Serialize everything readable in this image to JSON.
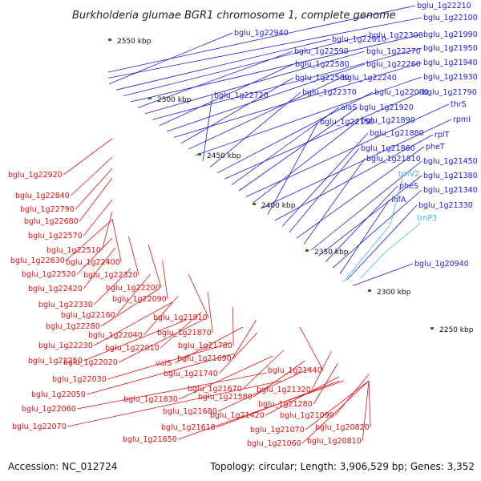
{
  "title": "Burkholderia glumae BGR1 chromosome 1, complete genome",
  "accession": "Accession: NC_012724",
  "summary": "Topology: circular; Length: 3,906,529 bp; Genes: 3,352",
  "colors": {
    "forward": "#1a1adc",
    "reverse": "#e01010",
    "rna": "#33bbdd",
    "backbone": "#808080",
    "tick": "#1e7f1e"
  },
  "ticks": [
    "2550 kbp",
    "2500 kbp",
    "2450 kbp",
    "2400 kbp",
    "2350 kbp",
    "2300 kbp",
    "2250 kbp"
  ],
  "forward_genes": [
    "bglu_1g22210",
    "bglu_1g22100",
    "bglu_1g22940",
    "bglu_1g22610",
    "bglu_1g22300",
    "bglu_1g21990",
    "bglu_1g22590",
    "bglu_1g22270",
    "bglu_1g21950",
    "bglu_1g22580",
    "bglu_1g22260",
    "bglu_1g21940",
    "bglu_1g22560",
    "bglu_1g22240",
    "bglu_1g21930",
    "bglu_1g22720",
    "bglu_1g22370",
    "bglu_1g22080",
    "bglu_1g21790",
    "alaS",
    "bglu_1g21920",
    "thrS",
    "bglu_1g21890",
    "rpmI",
    "bglu_1g22150",
    "rplT",
    "bglu_1g21880",
    "bglu_1g21860",
    "pheT",
    "bglu_1g21810",
    "bglu_1g21450",
    "bglu_1g21380",
    "pheS",
    "bglu_1g21340",
    "ihfA",
    "bglu_1g21330",
    "bglu_1g20940"
  ],
  "rna_genes": [
    "trnV2",
    "trnP3"
  ],
  "reverse_genes": [
    "bglu_1g22920",
    "bglu_1g22840",
    "bglu_1g22790",
    "bglu_1g22680",
    "bglu_1g22570",
    "bglu_1g22510",
    "bglu_1g22630",
    "bglu_1g22400",
    "bglu_1g22520",
    "bglu_1g22320",
    "bglu_1g22420",
    "bglu_1g22200",
    "bglu_1g22330",
    "bglu_1g22090",
    "bglu_1g22160",
    "bglu_1g21910",
    "bglu_1g22280",
    "bglu_1g22040",
    "bglu_1g21870",
    "bglu_1g22230",
    "bglu_1g22010",
    "bglu_1g21780",
    "bglu_1g22250",
    "bglu_1g22020",
    "valS",
    "bglu_1g21690",
    "bglu_1g21740",
    "bglu_1g21440",
    "bglu_1g22030",
    "bglu_1g21670",
    "bglu_1g22050",
    "bglu_1g21830",
    "bglu_1g21580",
    "bglu_1g21320",
    "bglu_1g21280",
    "bglu_1g21680",
    "bglu_1g22060",
    "bglu_1g21420",
    "bglu_1g21090",
    "bglu_1g22070",
    "bglu_1g21610",
    "bglu_1g21070",
    "bglu_1g20820",
    "bglu_1g21650",
    "bglu_1g21060",
    "bglu_1g20810"
  ]
}
